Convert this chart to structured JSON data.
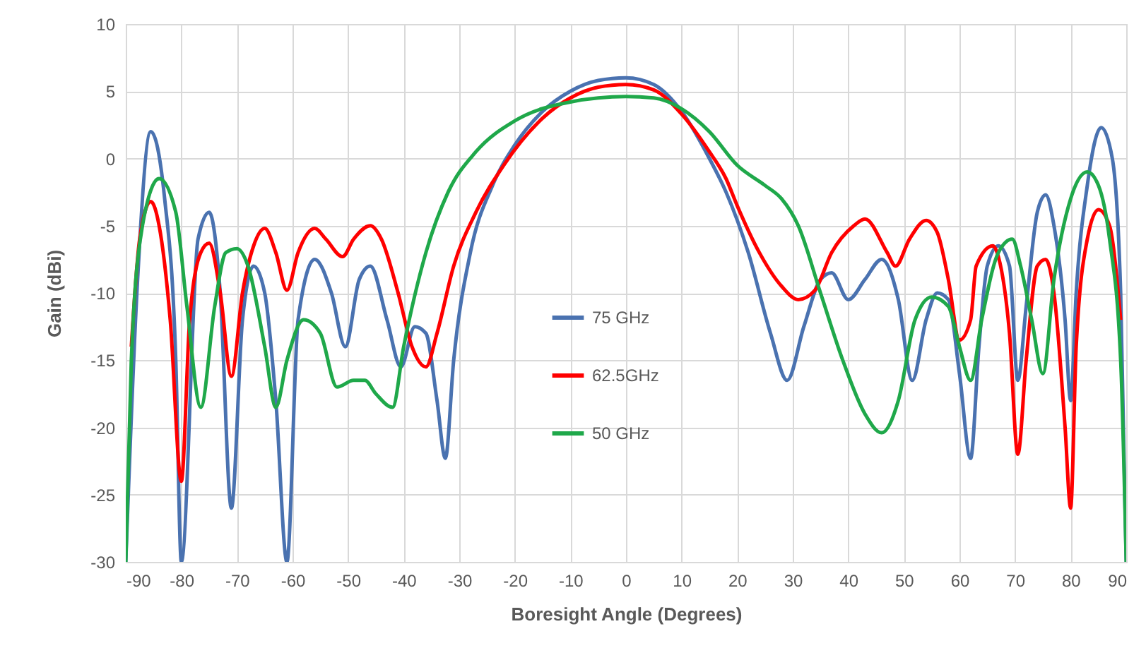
{
  "chart_data": {
    "type": "line",
    "xlabel": "Boresight Angle (Degrees)",
    "ylabel": "Gain (dBi)",
    "xlim": [
      -90,
      90
    ],
    "ylim": [
      -30,
      10
    ],
    "xticks": [
      -90,
      -80,
      -70,
      -60,
      -50,
      -40,
      -30,
      -20,
      -10,
      0,
      10,
      20,
      30,
      40,
      50,
      60,
      70,
      80,
      90
    ],
    "yticks": [
      -30,
      -25,
      -20,
      -15,
      -10,
      -5,
      0,
      5,
      10
    ],
    "grid": true,
    "legend": "center",
    "line_style": "solid",
    "marker": "none",
    "series": [
      {
        "name": "75 GHz",
        "color": "#4a72b0",
        "x": [
          -90,
          -88,
          -85.5,
          -83,
          -81,
          -80,
          -77,
          -75,
          -73,
          -71,
          -69,
          -67,
          -65,
          -63,
          -61,
          -59,
          -56,
          -53,
          -50.5,
          -48,
          -46,
          -43,
          -40.5,
          -38,
          -36,
          -34,
          -32.5,
          -31,
          -28,
          -24,
          -20,
          -15,
          -10,
          -5,
          0,
          5,
          10,
          15,
          18,
          22,
          26,
          29,
          32,
          35,
          37,
          40,
          43,
          46,
          49,
          51.5,
          54,
          56,
          58,
          60,
          62,
          63.5,
          65,
          67,
          69,
          70.5,
          72,
          74,
          75.5,
          77,
          79,
          80,
          81,
          83,
          85.5,
          87.5,
          89,
          90
        ],
        "values": [
          -30,
          -10,
          2,
          -3,
          -15,
          -30,
          -6,
          -4,
          -10,
          -26,
          -12,
          -8,
          -10,
          -18,
          -30,
          -12,
          -7.5,
          -10,
          -14,
          -9,
          -8,
          -12,
          -15.5,
          -12.5,
          -13,
          -18,
          -22.3,
          -15,
          -7,
          -2,
          1,
          3.5,
          5,
          5.8,
          6,
          5.5,
          3.5,
          0,
          -2.5,
          -7,
          -13,
          -16.5,
          -12.5,
          -9,
          -8.5,
          -10.5,
          -9,
          -7.5,
          -10.5,
          -16.5,
          -12,
          -10,
          -10.5,
          -16,
          -22.3,
          -14,
          -8,
          -6.5,
          -8,
          -16.5,
          -11,
          -4,
          -2.7,
          -5,
          -12,
          -18,
          -10,
          -2,
          2.3,
          0,
          -10,
          -30
        ]
      },
      {
        "name": "62.5GHz",
        "color": "#ff0000",
        "x": [
          -89,
          -87.5,
          -85.5,
          -84,
          -82,
          -80,
          -78.5,
          -76.5,
          -75,
          -73,
          -71,
          -69,
          -67,
          -65,
          -63,
          -61,
          -59,
          -56,
          -54,
          -51,
          -49,
          -46,
          -44,
          -41,
          -38.5,
          -36,
          -34,
          -31,
          -27,
          -22,
          -15,
          -10,
          -5,
          0,
          5,
          10,
          15,
          18,
          20,
          24,
          28,
          31,
          34,
          37,
          41,
          43,
          47,
          48.5,
          51,
          54,
          56,
          58,
          60,
          62,
          63,
          66,
          67,
          69,
          70.5,
          72,
          74,
          75.5,
          77,
          79,
          80,
          81,
          83,
          85,
          87,
          89
        ],
        "values": [
          -14,
          -6,
          -3.2,
          -5,
          -12,
          -24,
          -12,
          -7,
          -6.3,
          -10,
          -16.2,
          -10,
          -6.5,
          -5.2,
          -7,
          -9.8,
          -7,
          -5.2,
          -6,
          -7.3,
          -6,
          -5,
          -6,
          -10,
          -14,
          -15.5,
          -13,
          -8,
          -4,
          -0.5,
          3,
          4.5,
          5.3,
          5.5,
          5.1,
          3.3,
          0.5,
          -1.5,
          -3.5,
          -7,
          -9.5,
          -10.5,
          -9.8,
          -7,
          -5,
          -4.5,
          -7,
          -8,
          -6,
          -4.6,
          -5.5,
          -9,
          -13.5,
          -12,
          -8,
          -6.5,
          -7.3,
          -13,
          -22,
          -15,
          -8,
          -7.5,
          -10,
          -20,
          -26,
          -14,
          -6,
          -3.8,
          -5,
          -12
        ]
      },
      {
        "name": "50 GHz",
        "color": "#1fa84a",
        "x": [
          -90,
          -89,
          -87,
          -84,
          -81,
          -79,
          -76.5,
          -74,
          -72,
          -70,
          -68,
          -65,
          -63,
          -61,
          -58,
          -55,
          -52,
          -49,
          -47,
          -45,
          -42,
          -40,
          -36,
          -32,
          -27,
          -20,
          -10,
          0,
          5,
          10,
          15,
          20,
          25,
          28,
          31,
          35,
          39,
          43,
          46,
          49,
          52,
          55,
          58,
          60,
          62,
          64,
          67,
          69.5,
          71,
          73,
          75,
          77,
          80,
          83,
          85,
          87,
          89,
          90
        ],
        "values": [
          -30,
          -15,
          -5,
          -1.5,
          -4,
          -11,
          -18.5,
          -11,
          -7,
          -6.7,
          -8,
          -14,
          -18.5,
          -15,
          -12,
          -13,
          -17,
          -16.5,
          -16.5,
          -17.5,
          -18.5,
          -14,
          -7,
          -2.5,
          0.5,
          2.8,
          4.2,
          4.6,
          4.5,
          3.7,
          2,
          -0.5,
          -2,
          -3,
          -5,
          -10,
          -15,
          -19,
          -20.4,
          -18,
          -12,
          -10.3,
          -11,
          -14,
          -16.5,
          -12,
          -7,
          -6,
          -8,
          -12,
          -16,
          -9,
          -3,
          -1,
          -2,
          -6,
          -15,
          -30
        ]
      }
    ]
  }
}
